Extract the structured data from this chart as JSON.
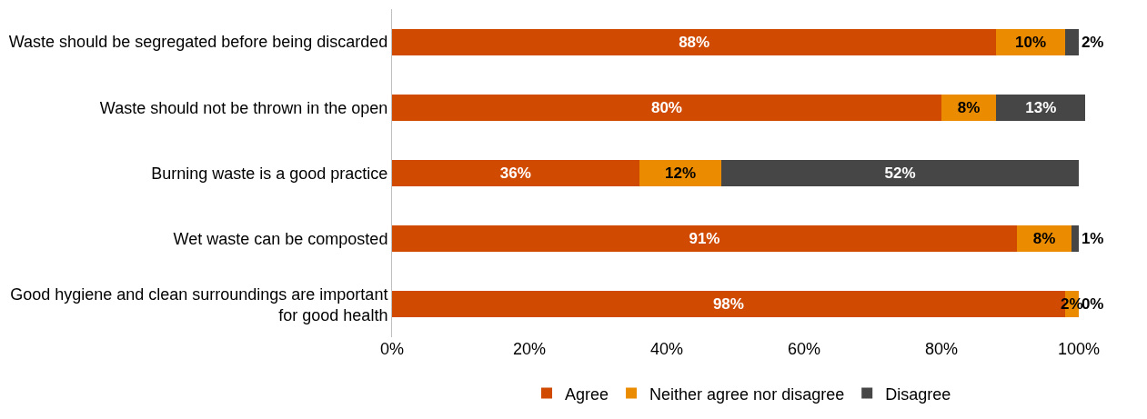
{
  "chart_data": {
    "type": "bar",
    "orientation": "horizontal",
    "stacked": true,
    "categories": [
      "Waste should be segregated before being discarded",
      "Waste should not be thrown in the open",
      "Burning waste is a good practice",
      "Wet waste can be composted",
      "Good hygiene and clean surroundings are important for good health"
    ],
    "series": [
      {
        "name": "Agree",
        "color": "#d04a02",
        "values": [
          88,
          80,
          36,
          91,
          98
        ],
        "value_labels": [
          "88%",
          "80%",
          "36%",
          "91%",
          "98%"
        ]
      },
      {
        "name": "Neither agree nor disagree",
        "color": "#eb8c00",
        "values": [
          10,
          8,
          12,
          8,
          2
        ],
        "value_labels": [
          "10%",
          "8%",
          "12%",
          "8%",
          "2%"
        ]
      },
      {
        "name": "Disagree",
        "color": "#464646",
        "values": [
          2,
          13,
          52,
          1,
          0
        ],
        "value_labels": [
          "2%",
          "13%",
          "52%",
          "1%",
          "0%"
        ]
      }
    ],
    "xlim": [
      0,
      102
    ],
    "xticks": [
      {
        "value": 0,
        "label": "0%"
      },
      {
        "value": 20,
        "label": "20%"
      },
      {
        "value": 40,
        "label": "40%"
      },
      {
        "value": 60,
        "label": "60%"
      },
      {
        "value": 80,
        "label": "80%"
      },
      {
        "value": 100,
        "label": "100%"
      }
    ],
    "legend": "bottom"
  }
}
